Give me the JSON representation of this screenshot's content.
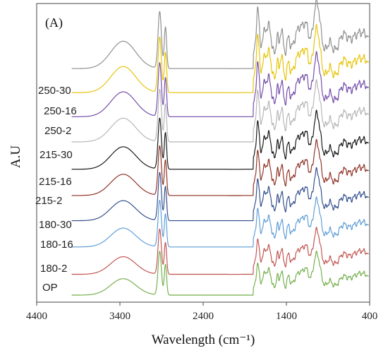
{
  "chart_data": {
    "type": "line",
    "panel_label": "(A)",
    "xlabel": "Wavelength (cm⁻¹)",
    "ylabel": "A.U",
    "xlim": [
      4400,
      400
    ],
    "x_reversed": true,
    "xticks": [
      4400,
      3400,
      2400,
      1400,
      400
    ],
    "ylim": [
      0,
      12.5
    ],
    "grid": false,
    "series": [
      {
        "name": "OP",
        "color": "#70ad47",
        "offset": 0.0
      },
      {
        "name": "180-2",
        "color": "#c0504d",
        "offset": 0.95
      },
      {
        "name": "180-16",
        "color": "#5b9bd5",
        "offset": 2.2
      },
      {
        "name": "180-30",
        "color": "#2e4a8a",
        "offset": 3.4
      },
      {
        "name": "215-2",
        "color": "#8b2d1f",
        "offset": 4.55
      },
      {
        "name": "215-16",
        "color": "#111111",
        "offset": 5.75
      },
      {
        "name": "215-30",
        "color": "#b4b4b4",
        "offset": 7.0
      },
      {
        "name": "250-2",
        "color": "#7048a8",
        "offset": 8.15
      },
      {
        "name": "250-16",
        "color": "#e6c200",
        "offset": 9.25
      },
      {
        "name": "250-30",
        "color": "#8c8c8c",
        "offset": 10.35
      }
    ]
  }
}
